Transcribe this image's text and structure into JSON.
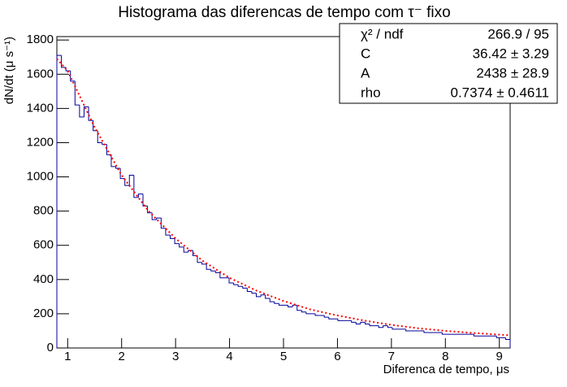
{
  "chart_data": {
    "type": "histogram",
    "title": "Histograma das diferencas de tempo com τ⁻ fixo",
    "x_label": "Diferenca de tempo, μs",
    "y_label": "dN/dt (μ s⁻¹)",
    "xlim": [
      0.8,
      9.2
    ],
    "ylim": [
      0,
      1820
    ],
    "xticks": [
      1,
      2,
      3,
      4,
      5,
      6,
      7,
      8,
      9
    ],
    "yticks": [
      0,
      200,
      400,
      600,
      800,
      1000,
      1200,
      1400,
      1600,
      1800
    ],
    "color": "#000099",
    "bins": [
      0.8,
      0.884,
      0.968,
      1.052,
      1.136,
      1.22,
      1.304,
      1.388,
      1.472,
      1.556,
      1.64,
      1.724,
      1.808,
      1.892,
      1.976,
      2.06,
      2.144,
      2.228,
      2.312,
      2.396,
      2.48,
      2.564,
      2.648,
      2.732,
      2.816,
      2.9,
      2.984,
      3.068,
      3.152,
      3.236,
      3.32,
      3.404,
      3.488,
      3.572,
      3.656,
      3.74,
      3.824,
      3.908,
      3.992,
      4.076,
      4.16,
      4.244,
      4.328,
      4.412,
      4.496,
      4.58,
      4.664,
      4.748,
      4.832,
      4.916,
      5.0,
      5.084,
      5.168,
      5.252,
      5.336,
      5.42,
      5.504,
      5.588,
      5.672,
      5.756,
      5.84,
      5.924,
      6.008,
      6.092,
      6.176,
      6.26,
      6.344,
      6.428,
      6.512,
      6.596,
      6.68,
      6.764,
      6.848,
      6.932,
      7.016,
      7.1,
      7.184,
      7.268,
      7.352,
      7.436,
      7.52,
      7.604,
      7.688,
      7.772,
      7.856,
      7.94,
      8.024,
      8.108,
      8.192,
      8.276,
      8.36,
      8.444,
      8.528,
      8.612,
      8.696,
      8.78,
      8.864,
      8.948,
      9.032,
      9.116,
      9.2
    ],
    "values": [
      1710,
      1640,
      1620,
      1560,
      1420,
      1350,
      1410,
      1330,
      1270,
      1200,
      1190,
      1130,
      1060,
      1050,
      990,
      950,
      1010,
      880,
      900,
      830,
      790,
      750,
      760,
      700,
      660,
      640,
      610,
      590,
      560,
      570,
      540,
      500,
      490,
      460,
      450,
      440,
      410,
      410,
      380,
      370,
      360,
      350,
      330,
      320,
      300,
      310,
      290,
      270,
      260,
      250,
      250,
      240,
      250,
      220,
      210,
      200,
      200,
      190,
      190,
      180,
      170,
      170,
      160,
      160,
      160,
      150,
      140,
      150,
      140,
      130,
      130,
      120,
      130,
      120,
      110,
      110,
      110,
      100,
      100,
      100,
      100,
      90,
      90,
      90,
      90,
      80,
      80,
      80,
      80,
      80,
      80,
      80,
      70,
      70,
      70,
      70,
      70,
      60,
      60,
      50
    ],
    "fit": {
      "color": "#ff0000",
      "x": [
        0.8,
        1,
        1.5,
        2,
        2.5,
        3,
        3.5,
        4,
        4.5,
        5,
        5.5,
        6,
        6.5,
        7,
        7.5,
        8,
        8.5,
        9,
        9.2
      ],
      "values": [
        1690,
        1620,
        1290,
        1010,
        800,
        640,
        510,
        410,
        335,
        275,
        225,
        190,
        160,
        135,
        115,
        100,
        88,
        78,
        74
      ]
    },
    "stats": [
      {
        "label": "χ² / ndf",
        "value": "266.9 / 95"
      },
      {
        "label": "C",
        "value": "36.42 ± 3.29"
      },
      {
        "label": "A",
        "value": "2438 ± 28.9"
      },
      {
        "label": "rho",
        "value": "0.7374 ± 0.4611"
      }
    ]
  }
}
